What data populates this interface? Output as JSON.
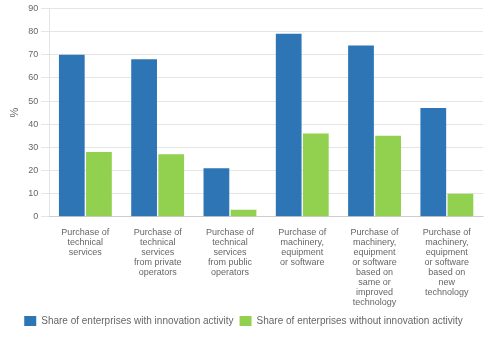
{
  "chart_data": {
    "type": "bar",
    "categories": [
      "Purchase of\ntechnical\nservices",
      "Purchase of\ntechnical\nservices\nfrom private\noperators",
      "Purchase of\ntechnical\nservices\nfrom public\noperators",
      "Purchase of\nmachinery,\nequipment\nor software",
      "Purchase of\nmachinery,\nequipment\nor software\nbased on\nsame or\nimproved\ntechnology",
      "Purchase of\nmachinery,\nequipment\nor software\nbased on\nnew\ntechnology"
    ],
    "series": [
      {
        "name": "Share of enterprises with innovation activity",
        "color": "#2E75B6",
        "values": [
          70,
          68,
          21,
          79,
          74,
          47
        ]
      },
      {
        "name": "Share of enterprises without innovation activity",
        "color": "#92D050",
        "values": [
          28,
          27,
          3,
          36,
          35,
          10
        ]
      }
    ],
    "ylabel": "%",
    "ylim": [
      0,
      90
    ],
    "yticks": [
      0,
      10,
      20,
      30,
      40,
      50,
      60,
      70,
      80,
      90
    ],
    "grid": true,
    "legend": "bottom"
  }
}
